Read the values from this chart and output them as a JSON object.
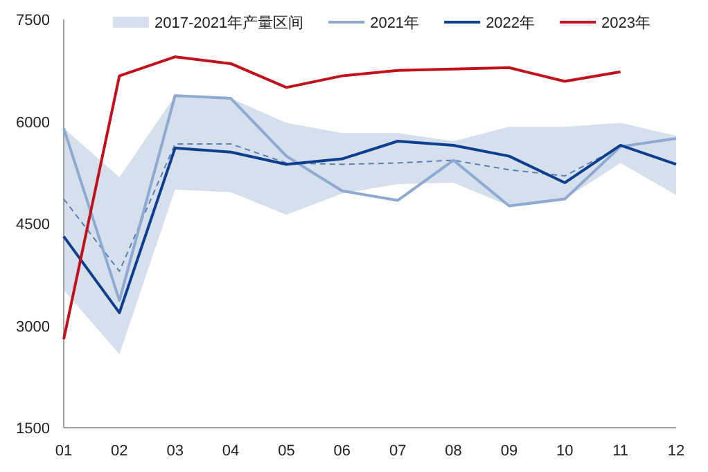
{
  "chart_data": {
    "type": "line",
    "categories": [
      "01",
      "02",
      "03",
      "04",
      "05",
      "06",
      "07",
      "08",
      "09",
      "10",
      "11",
      "12"
    ],
    "ylim": [
      1500,
      7500
    ],
    "yticks": [
      1500,
      3000,
      4500,
      6000,
      7500
    ],
    "grid": false,
    "legend": "top",
    "marker": "none",
    "series": [
      {
        "name": "2017-2021年产量区间",
        "color": "#5a7fb5",
        "line_style": "dashed",
        "values": [
          4860,
          3800,
          5670,
          5670,
          5390,
          5370,
          5390,
          5430,
          5290,
          5200,
          5630,
          5750
        ],
        "lower": [
          3520,
          2580,
          5000,
          4960,
          4630,
          4940,
          5080,
          5100,
          4760,
          4860,
          5390,
          4920
        ],
        "upper": [
          5900,
          5180,
          6380,
          6340,
          5980,
          5830,
          5830,
          5710,
          5920,
          5920,
          5980,
          5790
        ]
      },
      {
        "name": "2021年",
        "color": "#8faad1",
        "values": [
          5900,
          3370,
          6380,
          6340,
          5490,
          4980,
          4840,
          5430,
          4760,
          4860,
          5630,
          5750
        ]
      },
      {
        "name": "2022年",
        "color": "#0e3f8f",
        "values": [
          4310,
          3190,
          5610,
          5550,
          5370,
          5450,
          5710,
          5650,
          5490,
          5100,
          5650,
          5370
        ]
      },
      {
        "name": "2023年",
        "color": "#c0111c",
        "values": [
          2800,
          6670,
          6950,
          6850,
          6500,
          6670,
          6750,
          6770,
          6790,
          6590,
          6730,
          null
        ]
      }
    ]
  }
}
